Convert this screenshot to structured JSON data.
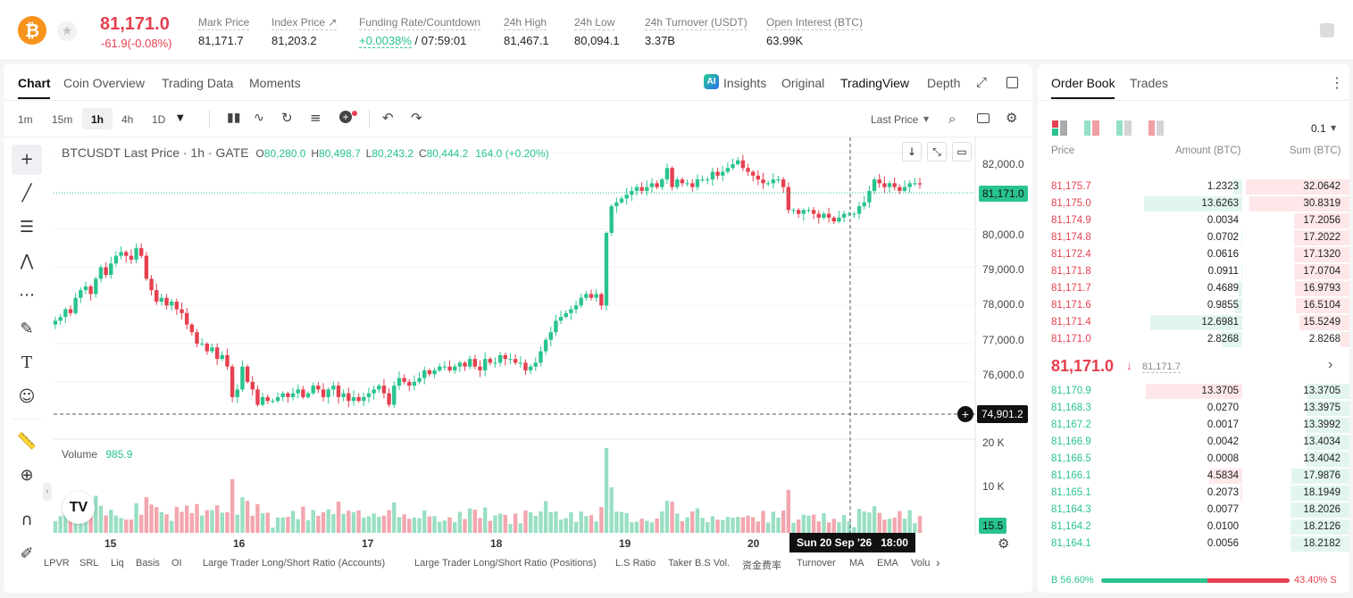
{
  "header": {
    "coin_icon": "bitcoin-icon",
    "last_price": "81,171.0",
    "change": "-61.9(-0.08%)",
    "stats": [
      {
        "label": "Mark Price",
        "value": "81,171.7"
      },
      {
        "label": "Index Price ↗",
        "value": "81,203.2"
      },
      {
        "label": "Funding Rate/Countdown",
        "value_green": "+0.0038%",
        "value": " / 07:59:01"
      },
      {
        "label": "24h High",
        "value": "81,467.1"
      },
      {
        "label": "24h Low",
        "value": "80,094.1"
      },
      {
        "label": "24h Turnover (USDT)",
        "value": "3.37B"
      },
      {
        "label": "Open Interest (BTC)",
        "value": "63.99K"
      }
    ]
  },
  "chart_tabs": [
    "Chart",
    "Coin Overview",
    "Trading Data",
    "Moments"
  ],
  "view_tabs": {
    "insights": "Insights",
    "original": "Original",
    "tradingview": "TradingView",
    "depth": "Depth"
  },
  "toolbar": {
    "intervals": [
      "1m",
      "15m",
      "1h",
      "4h",
      "1D"
    ],
    "active_interval": "1h",
    "price_type": "Last Price"
  },
  "legend": {
    "symbol": "BTCUSDT Last Price · 1h · GATE",
    "o_lbl": "O",
    "o": "80,280.0",
    "h_lbl": "H",
    "h": "80,498.7",
    "l_lbl": "L",
    "l": "80,243.2",
    "c_lbl": "C",
    "c": "80,444.2",
    "chg": "164.0 (+0.20%)"
  },
  "volume": {
    "label": "Volume",
    "value": "985.9"
  },
  "price_axis": [
    "82,000.0",
    "80,000.0",
    "79,000.0",
    "78,000.0",
    "77,000.0",
    "76,000.0"
  ],
  "price_tag": "81,171.0",
  "cursor_price": "74,901.2",
  "volume_axis": [
    "20 K",
    "10 K"
  ],
  "volume_tag": "15.5",
  "days": [
    "15",
    "16",
    "17",
    "18",
    "19",
    "20"
  ],
  "cursor_time": "Sun 20 Sep '26",
  "cursor_hour": "18:00",
  "bottom_indicators": [
    "LPVR",
    "SRL",
    "Liq",
    "Basis",
    "OI",
    "Large Trader Long/Short Ratio (Accounts)",
    "Large Trader Long/Short Ratio (Positions)",
    "L.S Ratio",
    "Taker B.S Vol.",
    "资金费率",
    "Turnover",
    "MA",
    "EMA",
    "Volu"
  ],
  "orderbook": {
    "tabs": [
      "Order Book",
      "Trades"
    ],
    "precision": "0.1",
    "cols": [
      "Price",
      "Amount (BTC)",
      "Sum (BTC)"
    ],
    "asks": [
      {
        "p": "81,175.7",
        "a": "1.2323",
        "s": "32.0642"
      },
      {
        "p": "81,175.0",
        "a": "13.6263",
        "s": "30.8319"
      },
      {
        "p": "81,174.9",
        "a": "0.0034",
        "s": "17.2056"
      },
      {
        "p": "81,174.8",
        "a": "0.0702",
        "s": "17.2022"
      },
      {
        "p": "81,172.4",
        "a": "0.0616",
        "s": "17.1320"
      },
      {
        "p": "81,171.8",
        "a": "0.0911",
        "s": "17.0704"
      },
      {
        "p": "81,171.7",
        "a": "0.4689",
        "s": "16.9793"
      },
      {
        "p": "81,171.6",
        "a": "0.9855",
        "s": "16.5104"
      },
      {
        "p": "81,171.4",
        "a": "12.6981",
        "s": "15.5249"
      },
      {
        "p": "81,171.0",
        "a": "2.8268",
        "s": "2.8268"
      }
    ],
    "mid_price": "81,171.0",
    "mid_arrow": "↓",
    "mid_mark": "81,171.7",
    "bids": [
      {
        "p": "81,170.9",
        "a": "13.3705",
        "s": "13.3705"
      },
      {
        "p": "81,168.3",
        "a": "0.0270",
        "s": "13.3975"
      },
      {
        "p": "81,167.2",
        "a": "0.0017",
        "s": "13.3992"
      },
      {
        "p": "81,166.9",
        "a": "0.0042",
        "s": "13.4034"
      },
      {
        "p": "81,166.5",
        "a": "0.0008",
        "s": "13.4042"
      },
      {
        "p": "81,166.1",
        "a": "4.5834",
        "s": "17.9876"
      },
      {
        "p": "81,165.1",
        "a": "0.2073",
        "s": "18.1949"
      },
      {
        "p": "81,164.3",
        "a": "0.0077",
        "s": "18.2026"
      },
      {
        "p": "81,164.2",
        "a": "0.0100",
        "s": "18.2126"
      },
      {
        "p": "81,164.1",
        "a": "0.0056",
        "s": "18.2182"
      }
    ],
    "buy_label": "B",
    "buy_pct": "56.60%",
    "sell_pct": "43.40%",
    "sell_label": "S",
    "buy_ratio": 0.566
  },
  "colors": {
    "up": "#29c48d",
    "down": "#e5404f",
    "up_vol": "#9adfc3",
    "down_vol": "#f3a6ae"
  },
  "chart_data": {
    "type": "candlestick",
    "title": "BTCUSDT Last Price · 1h · GATE",
    "ylim": [
      74500,
      82400
    ],
    "x_ticks": [
      "15",
      "16",
      "17",
      "18",
      "19",
      "20"
    ],
    "y_ticks": [
      82000,
      80000,
      79000,
      78000,
      77000,
      76000
    ],
    "last_price": 81171,
    "crosshair_price": 74901.2,
    "closes": [
      77600,
      77700,
      77900,
      77800,
      78200,
      78400,
      78500,
      78300,
      78700,
      79000,
      78800,
      79100,
      79300,
      79400,
      79300,
      79200,
      79500,
      79300,
      78700,
      78400,
      78100,
      78200,
      78000,
      78100,
      77900,
      77800,
      77500,
      77300,
      77000,
      77000,
      76800,
      76900,
      76600,
      76700,
      76400,
      75600,
      75800,
      76400,
      76000,
      75800,
      75400,
      75600,
      75500,
      75500,
      75600,
      75700,
      75600,
      75700,
      75800,
      75600,
      75700,
      75900,
      75800,
      75600,
      75800,
      75900,
      75600,
      75700,
      75500,
      75600,
      75500,
      75600,
      75700,
      75800,
      75900,
      75700,
      75400,
      75900,
      76100,
      76000,
      75900,
      76000,
      76100,
      76300,
      76200,
      76300,
      76400,
      76400,
      76300,
      76400,
      76500,
      76400,
      76600,
      76400,
      76300,
      76600,
      76500,
      76500,
      76700,
      76600,
      76600,
      76500,
      76500,
      76300,
      76400,
      76500,
      76800,
      77100,
      77300,
      77600,
      77700,
      77800,
      77900,
      78000,
      78200,
      78300,
      78200,
      78300,
      78000,
      79900,
      80600,
      80700,
      80800,
      80900,
      81000,
      81100,
      81000,
      81100,
      81200,
      81100,
      81300,
      81600,
      81100,
      81300,
      81200,
      81200,
      81100,
      81300,
      81300,
      81300,
      81500,
      81400,
      81500,
      81600,
      81700,
      81800,
      81600,
      81500,
      81400,
      81300,
      81200,
      81200,
      81300,
      81300,
      81100,
      80500,
      80500,
      80400,
      80500,
      80500,
      80400,
      80300,
      80400,
      80300,
      80200,
      80300,
      80400,
      80400,
      80400,
      80600,
      80700,
      81000,
      81300,
      81200,
      81100,
      81200,
      81100,
      81000,
      81100,
      81200,
      81200,
      81171
    ],
    "volume_ylim": [
      0,
      22000
    ]
  }
}
